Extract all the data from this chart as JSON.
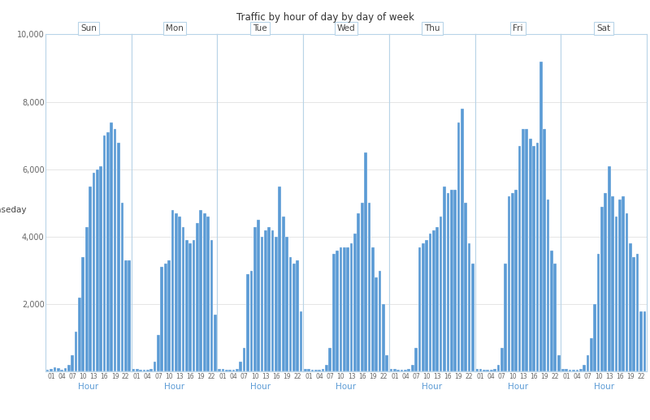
{
  "title": "Traffic by hour of day by day of week",
  "days_label": "Baseday",
  "panels": [
    "Sun",
    "Mon",
    "Tue",
    "Wed",
    "Thu",
    "Fri",
    "Sat"
  ],
  "hours": [
    0,
    1,
    2,
    3,
    4,
    5,
    6,
    7,
    8,
    9,
    10,
    11,
    12,
    13,
    14,
    15,
    16,
    17,
    18,
    19,
    20,
    21,
    22,
    23
  ],
  "bar_color": "#5b9bd5",
  "background_color": "#ffffff",
  "grid_color": "#e0e0e0",
  "panel_border_color": "#b8d4e8",
  "ylim": [
    0,
    10000
  ],
  "yticks": [
    0,
    2000,
    4000,
    6000,
    8000,
    10000
  ],
  "xlabel": "Hour",
  "traffic": {
    "Sun": [
      50,
      80,
      120,
      100,
      60,
      100,
      200,
      500,
      1200,
      2200,
      3400,
      4300,
      5500,
      5900,
      6000,
      6100,
      7000,
      7100,
      7400,
      7200,
      6800,
      5000,
      3300,
      3300
    ],
    "Mon": [
      80,
      80,
      60,
      50,
      50,
      80,
      300,
      1100,
      3100,
      3200,
      3300,
      4800,
      4700,
      4600,
      4300,
      3900,
      3800,
      3900,
      4400,
      4800,
      4700,
      4600,
      3900,
      1700
    ],
    "Tue": [
      80,
      80,
      60,
      50,
      50,
      80,
      300,
      700,
      2900,
      3000,
      4300,
      4500,
      4000,
      4200,
      4300,
      4200,
      4000,
      5500,
      4600,
      4000,
      3400,
      3200,
      3300,
      1800
    ],
    "Wed": [
      80,
      80,
      60,
      50,
      50,
      80,
      200,
      700,
      3500,
      3600,
      3700,
      3700,
      3700,
      3800,
      4100,
      4700,
      5000,
      6500,
      5000,
      3700,
      2800,
      3000,
      2000,
      500
    ],
    "Thu": [
      80,
      80,
      60,
      50,
      50,
      80,
      200,
      700,
      3700,
      3800,
      3900,
      4100,
      4200,
      4300,
      4600,
      5500,
      5300,
      5400,
      5400,
      7400,
      7800,
      5000,
      3800,
      3200
    ],
    "Fri": [
      80,
      80,
      60,
      50,
      50,
      80,
      200,
      700,
      3200,
      5200,
      5300,
      5400,
      6700,
      7200,
      7200,
      6900,
      6700,
      6800,
      9200,
      7200,
      5100,
      3600,
      3200,
      500
    ],
    "Sat": [
      80,
      80,
      60,
      50,
      50,
      80,
      200,
      500,
      1000,
      2000,
      3500,
      4900,
      5300,
      6100,
      5200,
      4600,
      5100,
      5200,
      4700,
      3800,
      3400,
      3500,
      1800,
      1800
    ]
  }
}
